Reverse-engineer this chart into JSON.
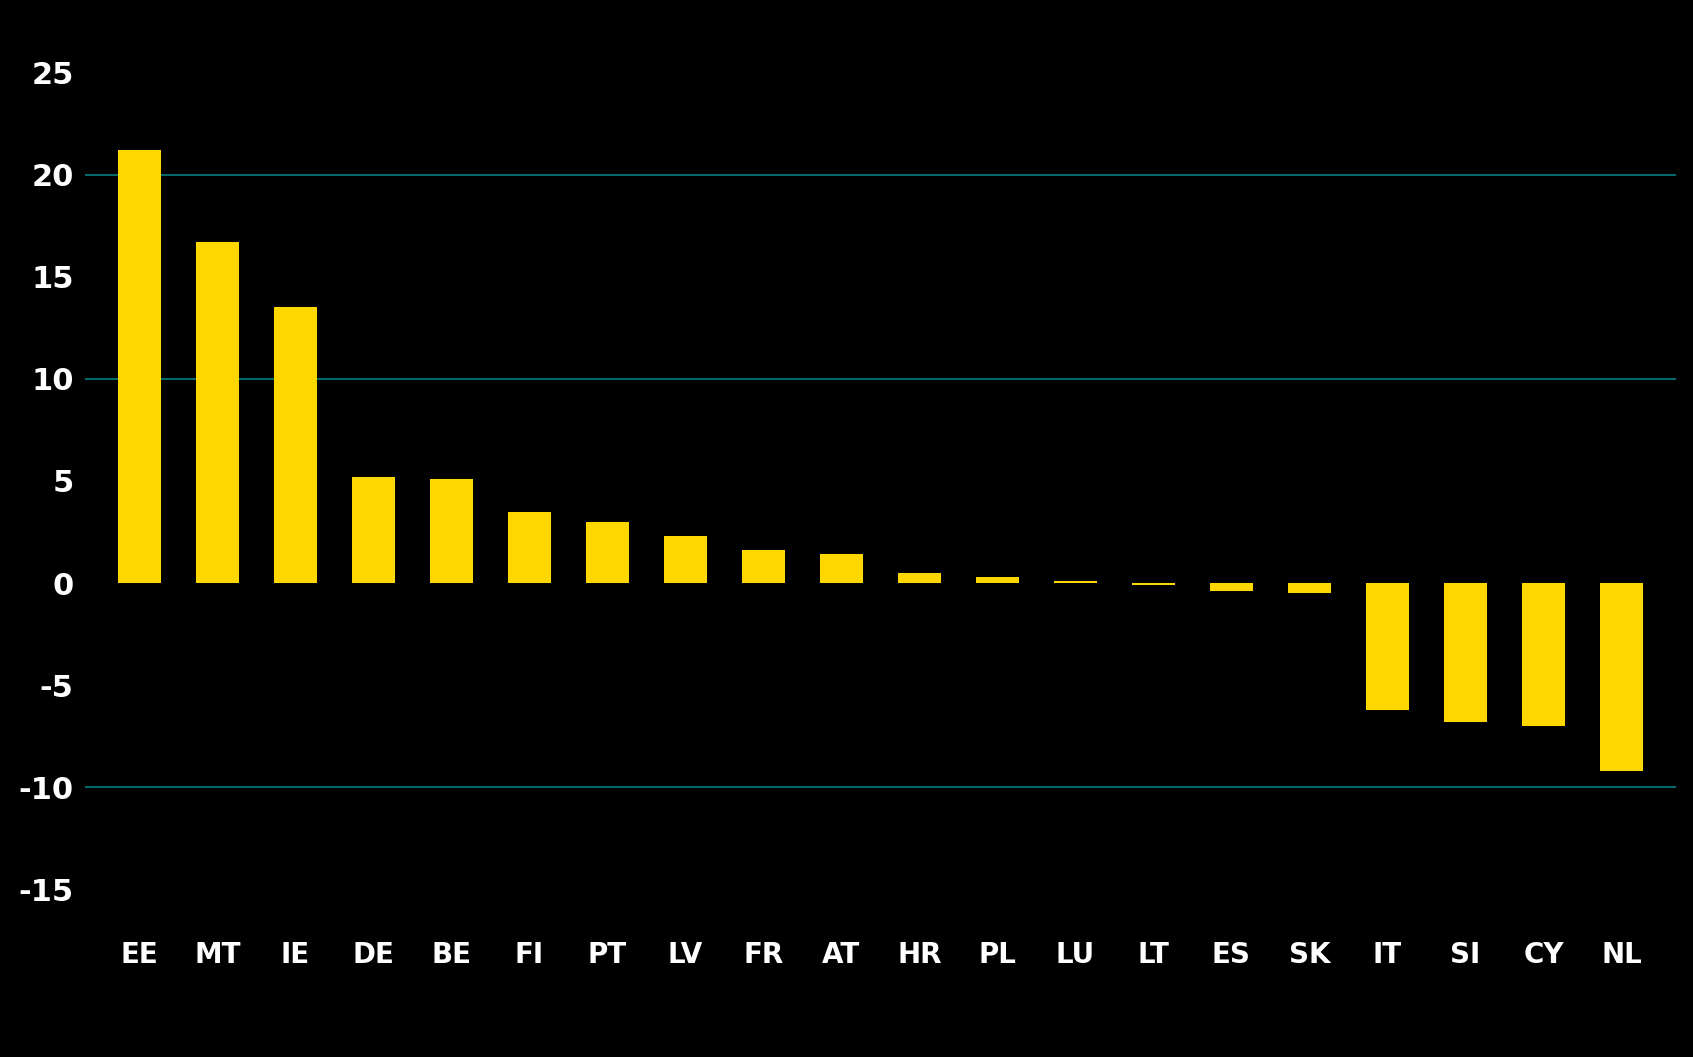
{
  "categories": [
    "EE",
    "MT",
    "IE",
    "DE",
    "BE",
    "FI",
    "PT",
    "LV",
    "FR",
    "AT",
    "HR",
    "PL",
    "LU",
    "LT",
    "ES",
    "SK",
    "IT",
    "SI",
    "CY",
    "NL"
  ],
  "values": [
    21.2,
    16.7,
    13.5,
    5.2,
    5.1,
    3.5,
    3.0,
    2.3,
    1.6,
    1.4,
    0.5,
    0.3,
    0.1,
    -0.1,
    -0.4,
    -0.5,
    -6.2,
    -6.8,
    -7.0,
    -9.2
  ],
  "bar_color": "#FFD700",
  "background_color": "#000000",
  "text_color": "#FFFFFF",
  "grid_color": "#008080",
  "yticks": [
    -15,
    -10,
    -5,
    0,
    5,
    10,
    15,
    20,
    25
  ],
  "ylim": [
    -17,
    27
  ],
  "grid_lines": [
    20,
    10,
    -10
  ],
  "bar_width": 0.55,
  "tick_fontsize": 22,
  "xlabel_fontsize": 20
}
